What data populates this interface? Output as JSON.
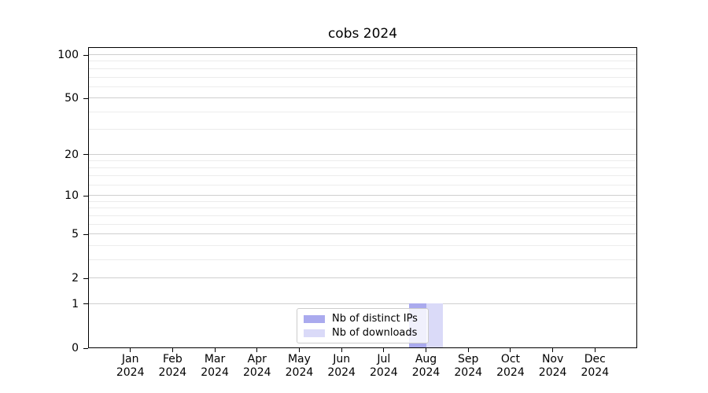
{
  "chart_data": {
    "type": "bar",
    "title": "cobs 2024",
    "categories": [
      "Jan 2024",
      "Feb 2024",
      "Mar 2024",
      "Apr 2024",
      "May 2024",
      "Jun 2024",
      "Jul 2024",
      "Aug 2024",
      "Sep 2024",
      "Oct 2024",
      "Nov 2024",
      "Dec 2024"
    ],
    "series": [
      {
        "name": "Nb of distinct IPs",
        "color": "#aaaaee",
        "values": [
          0,
          0,
          0,
          0,
          0,
          0,
          0,
          1,
          0,
          0,
          0,
          0
        ]
      },
      {
        "name": "Nb of downloads",
        "color": "#dadaf8",
        "values": [
          0,
          0,
          0,
          0,
          0,
          0,
          0,
          1,
          0,
          0,
          0,
          0
        ]
      }
    ],
    "xlabel": "",
    "ylabel": "",
    "yscale": "log1p",
    "ylim": [
      0,
      113
    ],
    "y_major_ticks": [
      0,
      1,
      2,
      5,
      10,
      20,
      50,
      100
    ],
    "y_major_gridlines": [
      1,
      2,
      5,
      10,
      20,
      50,
      100
    ],
    "y_minor_gridlines": [
      3,
      4,
      6,
      7,
      8,
      9,
      12,
      14,
      16,
      18,
      30,
      40,
      60,
      70,
      80,
      90
    ],
    "grid": "horizontal",
    "legend_position": "bottom-center"
  }
}
